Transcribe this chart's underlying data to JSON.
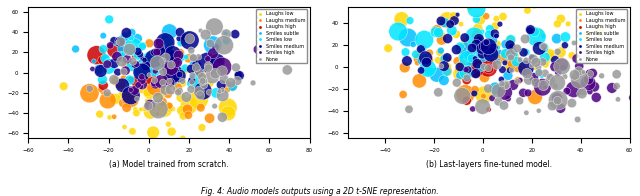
{
  "title_a": "(a) Model trained from scratch.",
  "title_b": "(b) Last-layers fine-tuned model.",
  "fig_caption": "Fig. 4: Audio models outputs using a 2D t-SNE representation.",
  "categories": [
    "Laughs low",
    "Laughs medium",
    "Laughs high",
    "Smiles subtle",
    "Smiles low",
    "Smiles medium",
    "Smiles high",
    "None"
  ],
  "colors": [
    "#FFD700",
    "#FF8C00",
    "#CC0000",
    "#00BFFF",
    "#00E5FF",
    "#00008B",
    "#4B0082",
    "#999999"
  ],
  "marker_sizes_small": [
    20,
    20,
    20,
    20,
    20,
    20,
    20,
    15
  ],
  "marker_sizes_large": [
    80,
    80,
    80,
    80,
    80,
    80,
    80,
    30
  ],
  "seed_a": 42,
  "seed_b": 123,
  "n_points": 300,
  "figsize": [
    6.4,
    1.96
  ],
  "dpi": 100
}
